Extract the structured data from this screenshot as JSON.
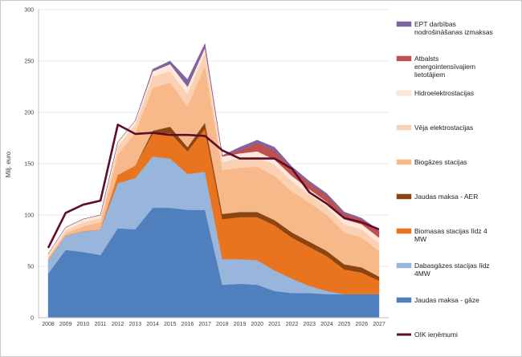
{
  "chart_data": {
    "type": "area",
    "ylabel": "Milj. euro",
    "ylim": [
      0,
      300
    ],
    "y_ticks": [
      0,
      50,
      100,
      150,
      200,
      250,
      300
    ],
    "y_tick_labels": [
      "0",
      "50",
      "100",
      "150",
      "200",
      "250",
      "300"
    ],
    "x": [
      "2008",
      "2009",
      "2010",
      "2011",
      "2012",
      "2013",
      "2014",
      "2015",
      "2016",
      "2017",
      "2018",
      "2019",
      "2020",
      "2021",
      "2022",
      "2023",
      "2024",
      "2025",
      "2026",
      "2027"
    ],
    "stacked": true,
    "series": [
      {
        "name": "Jaudas maksa - gāze",
        "color": "#4f7fbd",
        "values": [
          43,
          66,
          64,
          61,
          87,
          86,
          107,
          107,
          105,
          105,
          32,
          33,
          32,
          26,
          24,
          24,
          23,
          23,
          23,
          23
        ]
      },
      {
        "name": "Dabasgāzes stacijas līdz 4MW",
        "color": "#98b5dc",
        "values": [
          13,
          14,
          20,
          25,
          44,
          50,
          50,
          48,
          35,
          37,
          25,
          24,
          24,
          20,
          14,
          7,
          3,
          0,
          0,
          0
        ]
      },
      {
        "name": "Biomasas stacijas līdz 4 MW",
        "color": "#e8741f",
        "values": [
          0,
          0,
          0,
          0,
          8,
          12,
          22,
          25,
          22,
          42,
          39,
          41,
          42,
          44,
          40,
          38,
          34,
          24,
          21,
          13
        ]
      },
      {
        "name": "Jaudas maksa - AER",
        "color": "#8b4513",
        "values": [
          0,
          0,
          0,
          0,
          0,
          0,
          3,
          6,
          4,
          6,
          5,
          5,
          5,
          5,
          5,
          5,
          5,
          5,
          5,
          4
        ]
      },
      {
        "name": "Biogāzes stacijas",
        "color": "#f7b88a",
        "values": [
          2,
          2,
          5,
          7,
          20,
          32,
          42,
          43,
          40,
          55,
          43,
          43,
          44,
          43,
          40,
          38,
          35,
          31,
          29,
          25
        ]
      },
      {
        "name": "Vēja elektrostacijas",
        "color": "#fad2b3",
        "values": [
          2,
          3,
          4,
          4,
          8,
          8,
          11,
          11,
          12,
          13,
          8,
          9,
          10,
          11,
          10,
          8,
          8,
          8,
          8,
          8
        ]
      },
      {
        "name": "Hidroelektrostacijas",
        "color": "#fde8dc",
        "values": [
          2,
          3,
          3,
          3,
          4,
          4,
          5,
          7,
          7,
          5,
          5,
          5,
          5,
          5,
          5,
          5,
          5,
          5,
          5,
          5
        ]
      },
      {
        "name": "Atbalsts energointensīvajiem lietotājiem",
        "color": "#c0504d",
        "values": [
          0,
          0,
          0,
          0,
          0,
          0,
          0,
          0,
          0,
          0,
          1,
          3,
          8,
          9,
          7,
          6,
          6,
          5,
          5,
          6
        ]
      },
      {
        "name": "EPT darbības nodrošināšanas izmaksas",
        "color": "#8064a2",
        "values": [
          0,
          0,
          0,
          0,
          0,
          0,
          2,
          3,
          7,
          4,
          0,
          3,
          3,
          3,
          2,
          2,
          2,
          2,
          1,
          1
        ]
      }
    ],
    "line_series": {
      "name": "OIK ieņēmumi",
      "color": "#5e0d2a",
      "values": [
        68,
        102,
        110,
        114,
        188,
        179,
        180,
        178,
        178,
        177,
        163,
        155,
        155,
        155,
        145,
        122,
        111,
        97,
        93,
        86
      ]
    }
  },
  "legend": {
    "items": [
      {
        "text": "EPT darbības nodrošināšanas izmaksas",
        "color": "#8064a2",
        "kind": "band"
      },
      {
        "text": "Atbalsts energointensīvajiem lietotājiem",
        "color": "#c0504d",
        "kind": "band"
      },
      {
        "text": "Hidroelektrostacijas",
        "color": "#fde8dc",
        "kind": "band"
      },
      {
        "text": "Vēja elektrostacijas",
        "color": "#fad2b3",
        "kind": "band"
      },
      {
        "text": "Biogāzes stacijas",
        "color": "#f7b88a",
        "kind": "band"
      },
      {
        "text": "Jaudas maksa - AER",
        "color": "#8b4513",
        "kind": "band"
      },
      {
        "text": "Biomasas stacijas līdz 4 MW",
        "color": "#e8741f",
        "kind": "band"
      },
      {
        "text": "Dabasgāzes stacijas līdz 4MW",
        "color": "#98b5dc",
        "kind": "band"
      },
      {
        "text": "Jaudas maksa - gāze",
        "color": "#4f7fbd",
        "kind": "band"
      },
      {
        "text": "OIK ieņēmumi",
        "color": "#5e0d2a",
        "kind": "line"
      }
    ]
  }
}
